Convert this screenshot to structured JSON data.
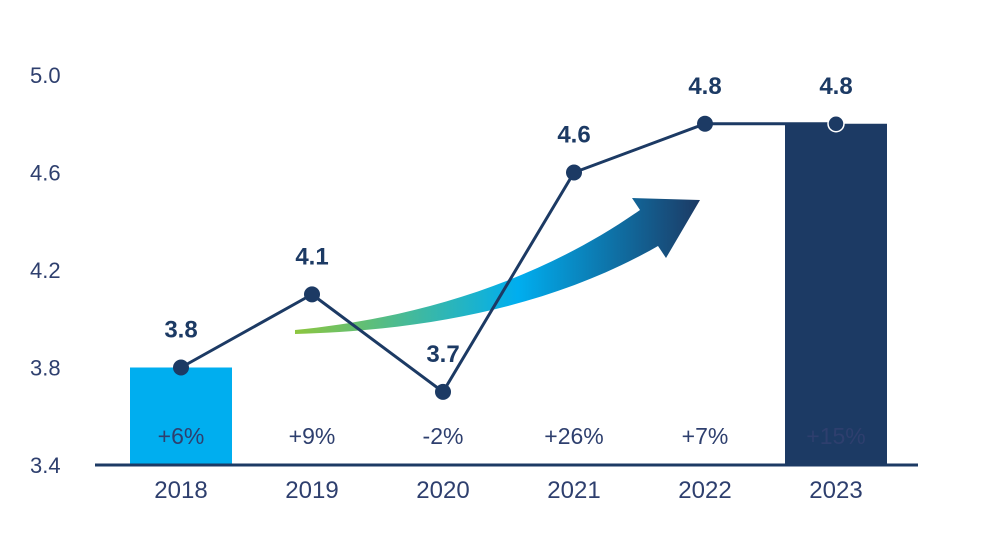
{
  "chart_data": {
    "type": "line",
    "title": "",
    "xlabel": "",
    "ylabel": "",
    "ylim": [
      3.4,
      5.0
    ],
    "yticks": [
      "3.4",
      "3.8",
      "4.2",
      "4.6",
      "5.0"
    ],
    "categories": [
      "2018",
      "2019",
      "2020",
      "2021",
      "2022",
      "2023"
    ],
    "values": [
      3.8,
      4.1,
      3.7,
      4.6,
      4.8,
      4.8
    ],
    "value_labels": [
      "3.8",
      "4.1",
      "3.7",
      "4.6",
      "4.8",
      "4.8"
    ],
    "percent_labels": [
      "+6%",
      "+9%",
      "-2%",
      "+26%",
      "+7%",
      "+15%"
    ],
    "highlight_bars": [
      {
        "category": "2018",
        "value": 3.8,
        "color": "#00aeef"
      },
      {
        "category": "2023",
        "value": 4.8,
        "color": "#1c3a64"
      }
    ],
    "grid": false,
    "legend": "none",
    "colors": {
      "line": "#1c3a64",
      "axis": "#1c3a64",
      "text": "#2e3f6e",
      "arrow_start": "#8dc63f",
      "arrow_mid": "#00aeef",
      "arrow_end": "#1c3a64"
    }
  }
}
